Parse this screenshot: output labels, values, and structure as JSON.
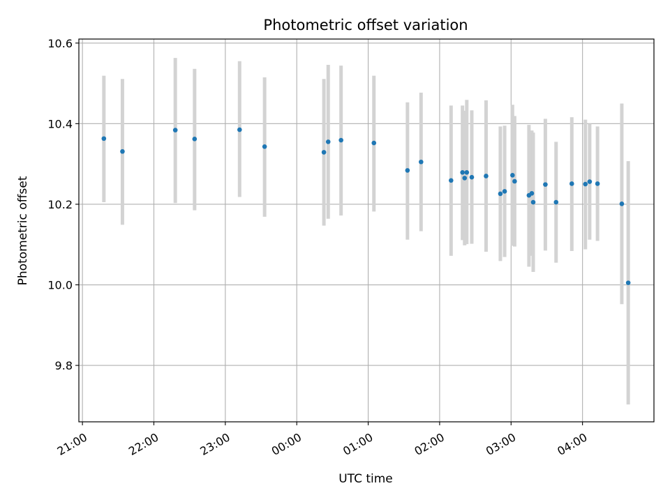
{
  "chart_data": {
    "type": "scatter",
    "title": "Photometric offset variation",
    "xlabel": "UTC time",
    "ylabel": "Photometric offset",
    "x_unit": "hours since 21:00 UTC",
    "xlim": [
      -0.05,
      8.0
    ],
    "ylim": [
      9.66,
      10.61
    ],
    "x_ticks": [
      {
        "value": 0,
        "label": "21:00"
      },
      {
        "value": 1,
        "label": "22:00"
      },
      {
        "value": 2,
        "label": "23:00"
      },
      {
        "value": 3,
        "label": "00:00"
      },
      {
        "value": 4,
        "label": "01:00"
      },
      {
        "value": 5,
        "label": "02:00"
      },
      {
        "value": 6,
        "label": "03:00"
      },
      {
        "value": 7,
        "label": "04:00"
      }
    ],
    "y_ticks": [
      {
        "value": 9.8,
        "label": "9.8"
      },
      {
        "value": 10.0,
        "label": "10.0"
      },
      {
        "value": 10.2,
        "label": "10.2"
      },
      {
        "value": 10.4,
        "label": "10.4"
      },
      {
        "value": 10.6,
        "label": "10.6"
      }
    ],
    "grid": true,
    "legend": "none",
    "colors": {
      "point": "#1f77b4",
      "errorbar": "#d3d3d3",
      "grid": "#b0b0b0"
    },
    "points": [
      {
        "x": 0.3,
        "y": 10.363,
        "lo": 10.205,
        "hi": 10.519
      },
      {
        "x": 0.56,
        "y": 10.331,
        "lo": 10.149,
        "hi": 10.511
      },
      {
        "x": 1.3,
        "y": 10.384,
        "lo": 10.203,
        "hi": 10.563
      },
      {
        "x": 1.57,
        "y": 10.362,
        "lo": 10.185,
        "hi": 10.536
      },
      {
        "x": 2.2,
        "y": 10.385,
        "lo": 10.218,
        "hi": 10.555
      },
      {
        "x": 2.55,
        "y": 10.343,
        "lo": 10.169,
        "hi": 10.515
      },
      {
        "x": 3.38,
        "y": 10.329,
        "lo": 10.147,
        "hi": 10.511
      },
      {
        "x": 3.44,
        "y": 10.355,
        "lo": 10.164,
        "hi": 10.546
      },
      {
        "x": 3.62,
        "y": 10.359,
        "lo": 10.172,
        "hi": 10.544
      },
      {
        "x": 4.08,
        "y": 10.352,
        "lo": 10.182,
        "hi": 10.519
      },
      {
        "x": 4.55,
        "y": 10.284,
        "lo": 10.112,
        "hi": 10.453
      },
      {
        "x": 4.74,
        "y": 10.305,
        "lo": 10.133,
        "hi": 10.477
      },
      {
        "x": 5.16,
        "y": 10.259,
        "lo": 10.072,
        "hi": 10.445
      },
      {
        "x": 5.32,
        "y": 10.279,
        "lo": 10.111,
        "hi": 10.445
      },
      {
        "x": 5.35,
        "y": 10.265,
        "lo": 10.098,
        "hi": 10.432
      },
      {
        "x": 5.38,
        "y": 10.279,
        "lo": 10.101,
        "hi": 10.459
      },
      {
        "x": 5.45,
        "y": 10.267,
        "lo": 10.102,
        "hi": 10.433
      },
      {
        "x": 5.65,
        "y": 10.27,
        "lo": 10.082,
        "hi": 10.458
      },
      {
        "x": 5.85,
        "y": 10.226,
        "lo": 10.059,
        "hi": 10.393
      },
      {
        "x": 5.91,
        "y": 10.232,
        "lo": 10.069,
        "hi": 10.395
      },
      {
        "x": 6.02,
        "y": 10.272,
        "lo": 10.097,
        "hi": 10.447
      },
      {
        "x": 6.05,
        "y": 10.257,
        "lo": 10.095,
        "hi": 10.419
      },
      {
        "x": 6.25,
        "y": 10.222,
        "lo": 10.045,
        "hi": 10.397
      },
      {
        "x": 6.29,
        "y": 10.227,
        "lo": 10.072,
        "hi": 10.383
      },
      {
        "x": 6.31,
        "y": 10.205,
        "lo": 10.032,
        "hi": 10.378
      },
      {
        "x": 6.48,
        "y": 10.249,
        "lo": 10.085,
        "hi": 10.412
      },
      {
        "x": 6.63,
        "y": 10.205,
        "lo": 10.055,
        "hi": 10.355
      },
      {
        "x": 6.85,
        "y": 10.251,
        "lo": 10.084,
        "hi": 10.416
      },
      {
        "x": 7.04,
        "y": 10.25,
        "lo": 10.088,
        "hi": 10.41
      },
      {
        "x": 7.1,
        "y": 10.256,
        "lo": 10.112,
        "hi": 10.4
      },
      {
        "x": 7.21,
        "y": 10.251,
        "lo": 10.109,
        "hi": 10.393
      },
      {
        "x": 7.55,
        "y": 10.201,
        "lo": 9.952,
        "hi": 10.45
      },
      {
        "x": 7.64,
        "y": 10.005,
        "lo": 9.703,
        "hi": 10.307
      }
    ]
  }
}
